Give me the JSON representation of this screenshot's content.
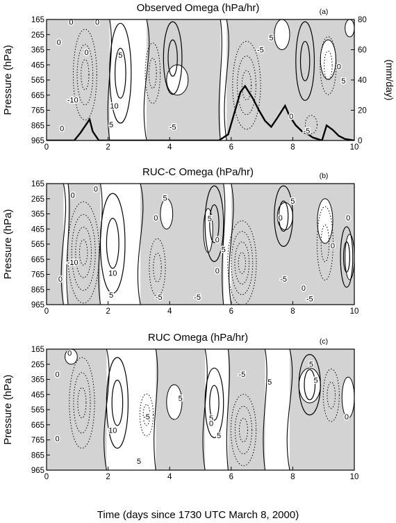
{
  "figure": {
    "xlabel": "Time (days since 1730 UTC March 8, 2000)"
  },
  "chart_data": [
    {
      "type": "heatmap",
      "panel_label": "(a)",
      "title": "Observed Omega (hPa/hr)",
      "xlabel": "",
      "ylabel": "Pressure (hPa)",
      "y2label": "(mm/day)",
      "xlim": [
        0,
        10
      ],
      "ylim": [
        965,
        165
      ],
      "y2lim": [
        0,
        80
      ],
      "x_ticks": [
        0,
        2,
        4,
        6,
        8,
        10
      ],
      "x_tick_labels": [
        "0",
        "2",
        "4",
        "6",
        "8",
        "10"
      ],
      "y_ticks": [
        165,
        265,
        365,
        465,
        565,
        665,
        765,
        865,
        965
      ],
      "y_tick_labels": [
        "165",
        "265",
        "365",
        "465",
        "565",
        "665",
        "765",
        "865",
        "965"
      ],
      "y2_ticks": [
        0,
        20,
        40,
        60,
        80
      ],
      "y2_tick_labels": [
        "0",
        "20",
        "40",
        "60",
        "80"
      ],
      "shading": "negative omega (upward motion) shaded gray",
      "contour_labels": [
        {
          "text": "0",
          "x": 0.8,
          "y": 185
        },
        {
          "text": "0",
          "x": 1.65,
          "y": 185
        },
        {
          "text": "0",
          "x": 0.4,
          "y": 320
        },
        {
          "text": "0",
          "x": 1.3,
          "y": 385
        },
        {
          "text": "-10",
          "x": 0.85,
          "y": 700
        },
        {
          "text": "10",
          "x": 2.2,
          "y": 740
        },
        {
          "text": "5",
          "x": 2.1,
          "y": 865
        },
        {
          "text": "0",
          "x": 0.5,
          "y": 890
        },
        {
          "text": "5",
          "x": 2.4,
          "y": 405
        },
        {
          "text": "-5",
          "x": 4.1,
          "y": 880
        },
        {
          "text": "5",
          "x": 7.3,
          "y": 290
        },
        {
          "text": "-5",
          "x": 6.95,
          "y": 370
        },
        {
          "text": "0",
          "x": 9.5,
          "y": 480
        },
        {
          "text": "5",
          "x": 9.65,
          "y": 575
        },
        {
          "text": "0",
          "x": 7.95,
          "y": 810
        },
        {
          "text": "-5",
          "x": 8.45,
          "y": 905
        }
      ],
      "precipitation": {
        "name": "",
        "x": [
          0.0,
          0.5,
          0.9,
          1.1,
          1.3,
          1.4,
          1.5,
          1.7,
          2.0,
          3.0,
          4.0,
          5.0,
          5.6,
          5.9,
          6.1,
          6.3,
          6.45,
          6.7,
          6.9,
          7.1,
          7.3,
          7.5,
          7.75,
          7.9,
          8.1,
          8.3,
          8.5,
          8.65,
          8.8,
          8.95,
          9.1,
          9.3,
          9.5,
          9.7,
          10.0
        ],
        "values": [
          0,
          0,
          0,
          5,
          11,
          14,
          6,
          0,
          0,
          0,
          0,
          0,
          0,
          4,
          18,
          32,
          36,
          28,
          20,
          13,
          9,
          15,
          23,
          16,
          10,
          6,
          4,
          2,
          1,
          0,
          10,
          7,
          3,
          1,
          0
        ]
      }
    },
    {
      "type": "heatmap",
      "panel_label": "(b)",
      "title": "RUC-C Omega (hPa/hr)",
      "xlabel": "",
      "ylabel": "Pressure (hPa)",
      "xlim": [
        0,
        10
      ],
      "ylim": [
        965,
        165
      ],
      "x_ticks": [
        0,
        2,
        4,
        6,
        8,
        10
      ],
      "x_tick_labels": [
        "0",
        "2",
        "4",
        "6",
        "8",
        "10"
      ],
      "y_ticks": [
        165,
        265,
        365,
        465,
        565,
        665,
        765,
        865,
        965
      ],
      "y_tick_labels": [
        "165",
        "265",
        "365",
        "465",
        "565",
        "665",
        "765",
        "865",
        "965"
      ],
      "shading": "negative omega (upward motion) shaded gray",
      "contour_labels": [
        {
          "text": "0",
          "x": 1.6,
          "y": 205
        },
        {
          "text": "0",
          "x": 0.85,
          "y": 245
        },
        {
          "text": "-10",
          "x": 0.85,
          "y": 690
        },
        {
          "text": "10",
          "x": 2.15,
          "y": 760
        },
        {
          "text": "5",
          "x": 2.1,
          "y": 905
        },
        {
          "text": "0",
          "x": 0.45,
          "y": 800
        },
        {
          "text": "5",
          "x": 3.85,
          "y": 265
        },
        {
          "text": "0",
          "x": 3.55,
          "y": 395
        },
        {
          "text": "5",
          "x": 5.3,
          "y": 400
        },
        {
          "text": "0",
          "x": 5.55,
          "y": 540
        },
        {
          "text": "5",
          "x": 5.75,
          "y": 605
        },
        {
          "text": "0",
          "x": 5.55,
          "y": 745
        },
        {
          "text": "-5",
          "x": 3.65,
          "y": 920
        },
        {
          "text": "-5",
          "x": 4.9,
          "y": 920
        },
        {
          "text": "5",
          "x": 8.0,
          "y": 285
        },
        {
          "text": "0",
          "x": 7.6,
          "y": 395
        },
        {
          "text": "0",
          "x": 9.3,
          "y": 580
        },
        {
          "text": "0",
          "x": 9.8,
          "y": 395
        },
        {
          "text": "-5",
          "x": 7.7,
          "y": 800
        },
        {
          "text": "0",
          "x": 8.35,
          "y": 860
        },
        {
          "text": "-5",
          "x": 8.55,
          "y": 930
        }
      ]
    },
    {
      "type": "heatmap",
      "panel_label": "(c)",
      "title": "RUC Omega (hPa/hr)",
      "xlabel": "",
      "ylabel": "Pressure (hPa)",
      "xlim": [
        0,
        10
      ],
      "ylim": [
        965,
        165
      ],
      "x_ticks": [
        0,
        2,
        4,
        6,
        8,
        10
      ],
      "x_tick_labels": [
        "0",
        "2",
        "4",
        "6",
        "8",
        "10"
      ],
      "y_ticks": [
        165,
        265,
        365,
        465,
        565,
        665,
        765,
        865,
        965
      ],
      "y_tick_labels": [
        "165",
        "265",
        "365",
        "465",
        "565",
        "665",
        "765",
        "865",
        "965"
      ],
      "shading": "negative omega (upward motion) shaded gray",
      "contour_labels": [
        {
          "text": "0",
          "x": 0.75,
          "y": 195
        },
        {
          "text": "0",
          "x": 0.35,
          "y": 335
        },
        {
          "text": "10",
          "x": 2.15,
          "y": 705
        },
        {
          "text": "5",
          "x": 3.0,
          "y": 910
        },
        {
          "text": "0",
          "x": 0.35,
          "y": 760
        },
        {
          "text": "-5",
          "x": 3.25,
          "y": 615
        },
        {
          "text": "5",
          "x": 4.35,
          "y": 495
        },
        {
          "text": "5",
          "x": 5.35,
          "y": 625
        },
        {
          "text": "0",
          "x": 5.35,
          "y": 660
        },
        {
          "text": "5",
          "x": 5.6,
          "y": 740
        },
        {
          "text": "-5",
          "x": 6.35,
          "y": 335
        },
        {
          "text": "5",
          "x": 7.25,
          "y": 385
        },
        {
          "text": "5",
          "x": 8.6,
          "y": 270
        },
        {
          "text": "5",
          "x": 8.75,
          "y": 375
        },
        {
          "text": "0",
          "x": 9.75,
          "y": 615
        }
      ]
    }
  ]
}
